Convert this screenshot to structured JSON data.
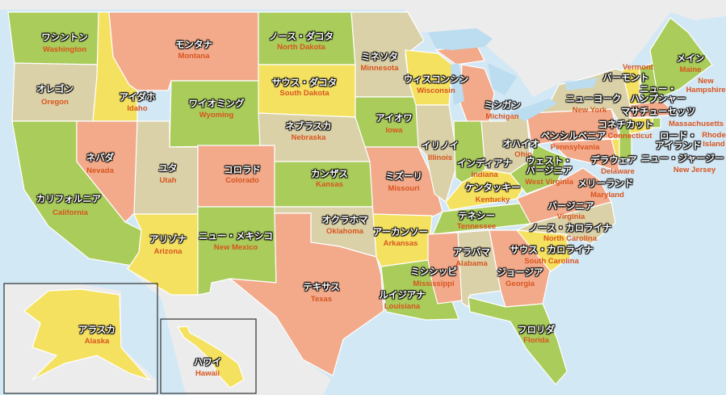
{
  "colors": {
    "green": "#a9cc5b",
    "tan": "#dbd1a8",
    "salmon": "#f2aa8b",
    "yellow": "#f5e160",
    "water": "#d3e8f5",
    "land_other": "#ececec",
    "lake": "#bcdcef"
  },
  "states": [
    {
      "id": "WA",
      "jp": "ワシントン",
      "en": "Washington",
      "color": "green"
    },
    {
      "id": "OR",
      "jp": "オレゴン",
      "en": "Oregon",
      "color": "tan"
    },
    {
      "id": "CA",
      "jp": "カリフォルニア",
      "en": "California",
      "color": "green"
    },
    {
      "id": "ID",
      "jp": "アイダホ",
      "en": "Idaho",
      "color": "yellow"
    },
    {
      "id": "NV",
      "jp": "ネバダ",
      "en": "Nevada",
      "color": "salmon"
    },
    {
      "id": "MT",
      "jp": "モンタナ",
      "en": "Montana",
      "color": "salmon"
    },
    {
      "id": "WY",
      "jp": "ワイオミング",
      "en": "Wyoming",
      "color": "green"
    },
    {
      "id": "UT",
      "jp": "ユタ",
      "en": "Utah",
      "color": "tan"
    },
    {
      "id": "AZ",
      "jp": "アリゾナ",
      "en": "Arizona",
      "color": "yellow"
    },
    {
      "id": "CO",
      "jp": "コロラド",
      "en": "Colorado",
      "color": "salmon"
    },
    {
      "id": "NM",
      "jp": "ニュー・メキシコ",
      "en": "New Mexico",
      "color": "green"
    },
    {
      "id": "ND",
      "jp": "ノース・ダコタ",
      "en": "North Dakota",
      "color": "green"
    },
    {
      "id": "SD",
      "jp": "サウス・ダコタ",
      "en": "South Dakota",
      "color": "yellow"
    },
    {
      "id": "NE",
      "jp": "ネブラスカ",
      "en": "Nebraska",
      "color": "tan"
    },
    {
      "id": "KS",
      "jp": "カンザス",
      "en": "Kansas",
      "color": "green"
    },
    {
      "id": "OK",
      "jp": "オクラホマ",
      "en": "Oklahoma",
      "color": "tan"
    },
    {
      "id": "TX",
      "jp": "テキサス",
      "en": "Texas",
      "color": "salmon"
    },
    {
      "id": "MN",
      "jp": "ミネソタ",
      "en": "Minnesota",
      "color": "tan"
    },
    {
      "id": "IA",
      "jp": "アイオワ",
      "en": "Iowa",
      "color": "green"
    },
    {
      "id": "MO",
      "jp": "ミズーリ",
      "en": "Missouri",
      "color": "salmon"
    },
    {
      "id": "AR",
      "jp": "アーカンソー",
      "en": "Arkansas",
      "color": "yellow"
    },
    {
      "id": "LA",
      "jp": "ルイジアナ",
      "en": "Louisiana",
      "color": "green"
    },
    {
      "id": "WI",
      "jp": "ウィスコンシン",
      "en": "Wisconsin",
      "color": "yellow"
    },
    {
      "id": "IL",
      "jp": "イリノイ",
      "en": "Illinois",
      "color": "tan"
    },
    {
      "id": "MI",
      "jp": "ミシガン",
      "en": "Michigan",
      "color": "salmon"
    },
    {
      "id": "IN",
      "jp": "インディアナ",
      "en": "Indiana",
      "color": "green"
    },
    {
      "id": "OH",
      "jp": "オハイオ",
      "en": "Ohio",
      "color": "tan"
    },
    {
      "id": "KY",
      "jp": "ケンタッキー",
      "en": "Kentucky",
      "color": "yellow"
    },
    {
      "id": "TN",
      "jp": "テネシー",
      "en": "Tennessee",
      "color": "green"
    },
    {
      "id": "MS",
      "jp": "ミシシッピ",
      "en": "Mississippi",
      "color": "salmon"
    },
    {
      "id": "AL",
      "jp": "アラバマ",
      "en": "Alabama",
      "color": "tan"
    },
    {
      "id": "GA",
      "jp": "ジョージア",
      "en": "Georgia",
      "color": "salmon"
    },
    {
      "id": "FL",
      "jp": "フロリダ",
      "en": "Florida",
      "color": "green"
    },
    {
      "id": "SC",
      "jp": "サウス・カロライナ",
      "en": "South Carolina",
      "color": "yellow"
    },
    {
      "id": "NC",
      "jp": "ノース・カロライナ",
      "en": "North Carolina",
      "color": "tan"
    },
    {
      "id": "VA",
      "jp": "バージニア",
      "en": "Virginia",
      "color": "salmon"
    },
    {
      "id": "WV",
      "jp": "ウェスト・バージニア",
      "en": "West Virginia",
      "color": "green"
    },
    {
      "id": "PA",
      "jp": "ペンシルベニア",
      "en": "Pennsylvania",
      "color": "salmon"
    },
    {
      "id": "NY",
      "jp": "ニューヨーク",
      "en": "New York",
      "color": "tan"
    },
    {
      "id": "MD",
      "jp": "メリーランド",
      "en": "Maryland",
      "color": "salmon"
    },
    {
      "id": "DE",
      "jp": "デラウェア",
      "en": "Delaware",
      "color": "yellow"
    },
    {
      "id": "NJ",
      "jp": "ニュー・ジャージー",
      "en": "New Jersey",
      "color": "green"
    },
    {
      "id": "CT",
      "jp": "コネチカット",
      "en": "Connecticut",
      "color": "yellow"
    },
    {
      "id": "RI",
      "jp": "ロード・アイランド",
      "en": "Rhode Island",
      "color": "green"
    },
    {
      "id": "MA",
      "jp": "マサチューセッツ",
      "en": "Massachusetts",
      "color": "salmon"
    },
    {
      "id": "NH",
      "jp": "ニュー・ハンプシャー",
      "en": "New Hampshire",
      "color": "green"
    },
    {
      "id": "VT",
      "jp": "バーモント",
      "en": "Vermont",
      "color": "yellow"
    },
    {
      "id": "ME",
      "jp": "メイン",
      "en": "Maine",
      "color": "green"
    },
    {
      "id": "AK",
      "jp": "アラスカ",
      "en": "Alaska",
      "color": "yellow"
    },
    {
      "id": "HI",
      "jp": "ハワイ",
      "en": "Hawaii",
      "color": "yellow"
    }
  ]
}
